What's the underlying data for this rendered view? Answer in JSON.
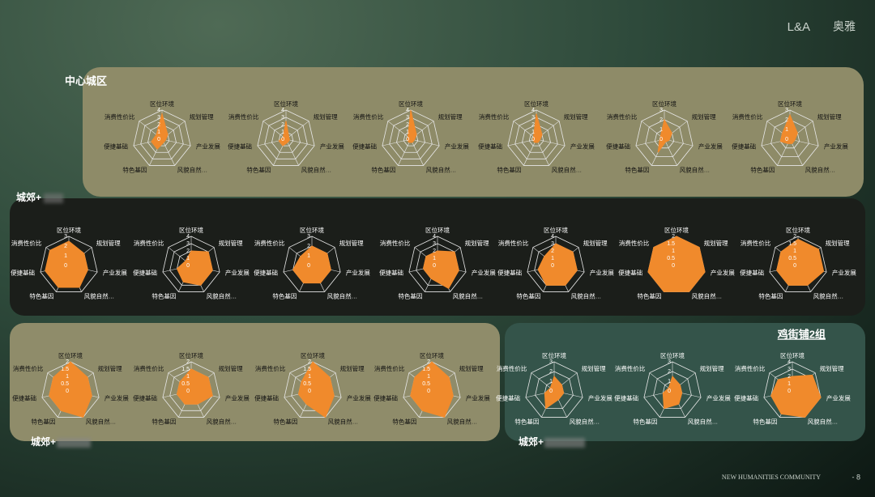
{
  "logo": {
    "mark": "L&A",
    "text": "奥雅"
  },
  "footer": {
    "text": "NEW HUMANITIES COMMUNITY",
    "page": "- 8"
  },
  "panels": [
    {
      "label": "中心城区"
    },
    {
      "label": "城郊+"
    },
    {
      "label": "城郊+"
    },
    {
      "label": "鸡街铺2组",
      "sublabel": "城郊+"
    }
  ],
  "chart_data": [
    {
      "type": "radar",
      "categories": [
        "区位环境",
        "规划管理",
        "产业发展",
        "风貌自然…",
        "特色基因",
        "便捷基础",
        "消费性价比"
      ],
      "values": [
        3.5,
        1,
        0.5,
        0.5,
        1.5,
        1.5,
        1
      ],
      "ylim": [
        0,
        4
      ],
      "yticks": [
        0,
        1,
        2,
        3,
        4
      ],
      "color": "#f08a2c"
    },
    {
      "type": "radar",
      "categories": [
        "区位环境",
        "规划管理",
        "产业发展",
        "风貌自然…",
        "特色基因",
        "便捷基础",
        "消费性价比"
      ],
      "values": [
        2.5,
        0.5,
        0.5,
        0.5,
        1,
        1,
        0.5
      ],
      "ylim": [
        0,
        4
      ],
      "yticks": [
        0,
        1,
        2,
        3,
        4
      ],
      "color": "#f08a2c"
    },
    {
      "type": "radar",
      "categories": [
        "区位环境",
        "规划管理",
        "产业发展",
        "风貌自然…",
        "特色基因",
        "便捷基础",
        "消费性价比"
      ],
      "values": [
        4,
        1,
        0.5,
        0.5,
        0.5,
        0.5,
        0.5
      ],
      "ylim": [
        0,
        4
      ],
      "yticks": [
        0,
        1,
        2,
        3,
        4
      ],
      "color": "#f08a2c"
    },
    {
      "type": "radar",
      "categories": [
        "区位环境",
        "规划管理",
        "产业发展",
        "风貌自然…",
        "特色基因",
        "便捷基础",
        "消费性价比"
      ],
      "values": [
        3.5,
        1,
        0.5,
        0.5,
        0.5,
        0.5,
        0.5
      ],
      "ylim": [
        0,
        4
      ],
      "yticks": [
        0,
        1,
        2,
        3,
        4
      ],
      "color": "#f08a2c"
    },
    {
      "type": "radar",
      "categories": [
        "区位环境",
        "规划管理",
        "产业发展",
        "风貌自然…",
        "特色基因",
        "便捷基础",
        "消费性价比"
      ],
      "values": [
        2,
        1,
        0.5,
        0.3,
        1.5,
        0.5,
        0.5
      ],
      "ylim": [
        0,
        3
      ],
      "yticks": [
        0,
        1,
        2,
        3
      ],
      "color": "#f08a2c"
    },
    {
      "type": "radar",
      "categories": [
        "区位环境",
        "规划管理",
        "产业发展",
        "风貌自然…",
        "特色基因",
        "便捷基础",
        "消费性价比"
      ],
      "values": [
        2.5,
        1,
        0.5,
        0.5,
        0.5,
        1,
        1
      ],
      "ylim": [
        0,
        3
      ],
      "yticks": [
        0,
        1,
        2,
        3
      ],
      "color": "#f08a2c"
    },
    {
      "type": "radar",
      "categories": [
        "区位环境",
        "规划管理",
        "产业发展",
        "风貌自然…",
        "特色基因",
        "便捷基础",
        "消费性价比"
      ],
      "values": [
        2.5,
        2,
        2,
        2.5,
        2.5,
        2.5,
        2.5
      ],
      "ylim": [
        0,
        3
      ],
      "yticks": [
        0,
        1,
        2,
        3
      ],
      "color": "#f08a2c"
    },
    {
      "type": "radar",
      "categories": [
        "区位环境",
        "规划管理",
        "产业发展",
        "风貌自然…",
        "特色基因",
        "便捷基础",
        "消费性价比"
      ],
      "values": [
        2,
        3,
        3,
        3,
        2.5,
        2,
        1
      ],
      "ylim": [
        0,
        4
      ],
      "yticks": [
        0,
        1,
        2,
        3,
        4
      ],
      "color": "#f08a2c"
    },
    {
      "type": "radar",
      "categories": [
        "区位环境",
        "规划管理",
        "产业发展",
        "风貌自然…",
        "特色基因",
        "便捷基础",
        "消费性价比"
      ],
      "values": [
        2,
        2,
        2,
        2,
        2,
        2,
        1.5
      ],
      "ylim": [
        0,
        3
      ],
      "yticks": [
        0,
        1,
        2,
        3
      ],
      "color": "#f08a2c"
    },
    {
      "type": "radar",
      "categories": [
        "区位环境",
        "规划管理",
        "产业发展",
        "风貌自然…",
        "特色基因",
        "便捷基础",
        "消费性价比"
      ],
      "values": [
        2,
        3,
        3,
        3.5,
        2,
        2,
        2
      ],
      "ylim": [
        0,
        4
      ],
      "yticks": [
        0,
        1,
        2,
        3,
        4
      ],
      "color": "#f08a2c"
    },
    {
      "type": "radar",
      "categories": [
        "区位环境",
        "规划管理",
        "产业发展",
        "风貌自然…",
        "特色基因",
        "便捷基础",
        "消费性价比"
      ],
      "values": [
        3,
        3,
        3,
        3,
        3,
        2.5,
        2
      ],
      "ylim": [
        0,
        4
      ],
      "yticks": [
        0,
        1,
        2,
        3,
        4
      ],
      "color": "#f08a2c"
    },
    {
      "type": "radar",
      "categories": [
        "区位环境",
        "规划管理",
        "产业发展",
        "风貌自然…",
        "特色基因",
        "便捷基础",
        "消费性价比"
      ],
      "values": [
        2,
        2,
        2,
        2,
        2,
        2,
        2
      ],
      "ylim": [
        0,
        2
      ],
      "yticks": [
        0,
        0.5,
        1,
        1.5,
        2
      ],
      "color": "#f08a2c"
    },
    {
      "type": "radar",
      "categories": [
        "区位环境",
        "规划管理",
        "产业发展",
        "风貌自然…",
        "特色基因",
        "便捷基础",
        "消费性价比"
      ],
      "values": [
        1.8,
        1.8,
        1.8,
        1.5,
        1.5,
        1.5,
        1.5
      ],
      "ylim": [
        0,
        2
      ],
      "yticks": [
        0,
        0.5,
        1,
        1.5,
        2
      ],
      "color": "#f08a2c"
    },
    {
      "type": "radar",
      "categories": [
        "区位环境",
        "规划管理",
        "产业发展",
        "风貌自然…",
        "特色基因",
        "便捷基础",
        "消费性价比"
      ],
      "values": [
        2,
        1.5,
        1.5,
        2,
        1.5,
        1.5,
        1.5
      ],
      "ylim": [
        0,
        2
      ],
      "yticks": [
        0,
        0.5,
        1,
        1.5,
        2
      ],
      "color": "#f08a2c"
    },
    {
      "type": "radar",
      "categories": [
        "区位环境",
        "规划管理",
        "产业发展",
        "风貌自然…",
        "特色基因",
        "便捷基础",
        "消费性价比"
      ],
      "values": [
        1.5,
        1.5,
        1.5,
        1,
        1,
        1,
        1
      ],
      "ylim": [
        0,
        2
      ],
      "yticks": [
        0,
        0.5,
        1,
        1.5,
        2
      ],
      "color": "#f08a2c"
    },
    {
      "type": "radar",
      "categories": [
        "区位环境",
        "规划管理",
        "产业发展",
        "风貌自然…",
        "特色基因",
        "便捷基础",
        "消费性价比"
      ],
      "values": [
        2,
        1.5,
        1.5,
        2,
        1,
        1,
        1
      ],
      "ylim": [
        0,
        2
      ],
      "yticks": [
        0,
        0.5,
        1,
        1.5,
        2
      ],
      "color": "#f08a2c"
    },
    {
      "type": "radar",
      "categories": [
        "区位环境",
        "规划管理",
        "产业发展",
        "风貌自然…",
        "特色基因",
        "便捷基础",
        "消费性价比"
      ],
      "values": [
        2,
        1.5,
        1.5,
        2,
        1.5,
        1.5,
        1.5
      ],
      "ylim": [
        0,
        2
      ],
      "yticks": [
        0,
        0.5,
        1,
        1.5,
        2
      ],
      "color": "#f08a2c"
    },
    {
      "type": "radar",
      "categories": [
        "区位环境",
        "规划管理",
        "产业发展",
        "风貌自然…",
        "特色基因",
        "便捷基础",
        "消费性价比"
      ],
      "values": [
        1.5,
        1,
        1,
        1,
        2,
        1,
        0.5
      ],
      "ylim": [
        0,
        3
      ],
      "yticks": [
        0,
        1,
        2,
        3
      ],
      "color": "#f08a2c"
    },
    {
      "type": "radar",
      "categories": [
        "区位环境",
        "规划管理",
        "产业发展",
        "风貌自然…",
        "特色基因",
        "便捷基础",
        "消费性价比"
      ],
      "values": [
        1.5,
        1,
        1,
        1.5,
        2,
        1,
        0.5
      ],
      "ylim": [
        0,
        3
      ],
      "yticks": [
        0,
        1,
        2,
        3
      ],
      "color": "#f08a2c"
    },
    {
      "type": "radar",
      "categories": [
        "区位环境",
        "规划管理",
        "产业发展",
        "风貌自然…",
        "特色基因",
        "便捷基础",
        "消费性价比"
      ],
      "values": [
        2,
        3.5,
        4,
        4,
        3.5,
        3,
        2.5
      ],
      "ylim": [
        0,
        4
      ],
      "yticks": [
        0,
        1,
        2,
        3,
        4
      ],
      "color": "#f08a2c"
    }
  ]
}
